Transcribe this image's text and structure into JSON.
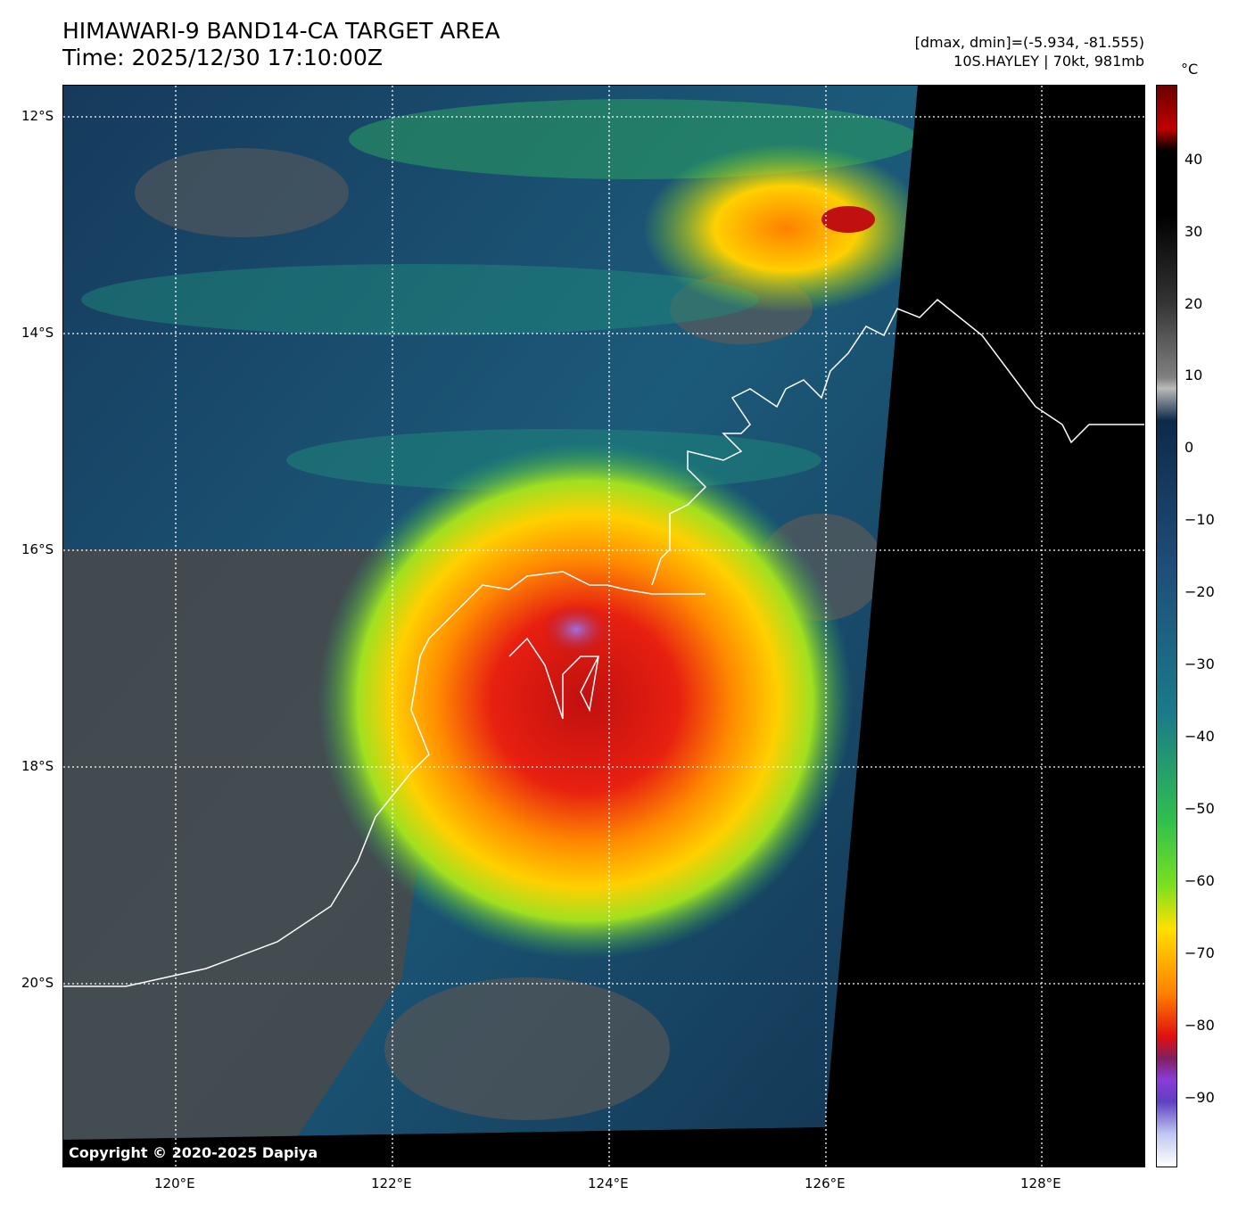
{
  "header": {
    "title_line1": "HIMAWARI-9 BAND14-CA TARGET AREA",
    "title_line2": "Time: 2025/12/30 17:10:00Z",
    "stats_line1": "[dmax, dmin]=(-5.934, -81.555)",
    "stats_line2": "10S.HAYLEY | 70kt, 981mb"
  },
  "map": {
    "copyright": "Copyright © 2020-2025 Dapiya",
    "lat_labels": [
      "12°S",
      "14°S",
      "16°S",
      "18°S",
      "20°S"
    ],
    "lon_labels": [
      "120°E",
      "122°E",
      "124°E",
      "126°E",
      "128°E"
    ],
    "storm": {
      "name": "10S.HAYLEY",
      "intensity_kt": 70,
      "pressure_mb": 981
    }
  },
  "colorbar": {
    "unit": "°C",
    "labels": [
      "40",
      "30",
      "20",
      "10",
      "0",
      "−10",
      "−20",
      "−30",
      "−40",
      "−50",
      "−60",
      "−70",
      "−80",
      "−90"
    ],
    "colors": {
      "warm_top": "#6a0000",
      "black": "#000000",
      "gray": "#808080",
      "navy": "#0d2a4a",
      "blue": "#1f4f7a",
      "teal": "#1a7a8a",
      "green": "#2fbf4f",
      "lime": "#7be01f",
      "yellow": "#ffe000",
      "orange": "#ff8000",
      "red": "#e01010",
      "purple": "#8a3cd9",
      "white": "#ffffff"
    }
  }
}
